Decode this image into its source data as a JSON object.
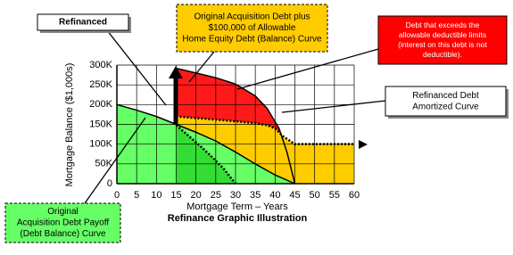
{
  "chart_data": {
    "type": "area",
    "title": "Refinance Graphic Illustration",
    "x_label": "Mortgage Term – Years",
    "y_label": "Mortgage Balance ($1,000s)",
    "xlim": [
      0,
      60
    ],
    "ylim": [
      0,
      300
    ],
    "xticks": [
      0,
      5,
      10,
      15,
      20,
      25,
      30,
      35,
      40,
      45,
      50,
      55,
      60
    ],
    "yticks": [
      {
        "value": 0,
        "label": "0"
      },
      {
        "value": 50,
        "label": "50K"
      },
      {
        "value": 100,
        "label": "100K"
      },
      {
        "value": 150,
        "label": "150K"
      },
      {
        "value": 200,
        "label": "200K"
      },
      {
        "value": 250,
        "label": "250K"
      },
      {
        "value": 300,
        "label": "300K"
      }
    ],
    "grid": true,
    "series": [
      {
        "color": "#ff1a1a",
        "line": "solid",
        "x": [
          15,
          20,
          25,
          30,
          35,
          38,
          41,
          43,
          45
        ],
        "values": [
          292,
          280,
          268,
          252,
          222,
          190,
          140,
          80,
          0
        ]
      },
      {
        "color": "#ffcc00",
        "line": "dotted",
        "x": [
          15,
          20,
          25,
          30,
          35,
          38,
          40,
          42,
          45,
          60
        ],
        "values": [
          170,
          166,
          162,
          158,
          153,
          148,
          140,
          120,
          100,
          100
        ]
      },
      {
        "color": "#66ff66",
        "line": "solid",
        "x": [
          0,
          5,
          10,
          15,
          20,
          25,
          30,
          35,
          40,
          45
        ],
        "values": [
          200,
          186,
          170,
          150,
          130,
          108,
          80,
          50,
          22,
          0
        ]
      },
      {
        "color": "#33dd33",
        "line": "dotted",
        "x": [
          15,
          18,
          21,
          24,
          27,
          30
        ],
        "values": [
          148,
          122,
          96,
          68,
          38,
          0
        ]
      }
    ],
    "annotations": [
      {
        "lines": [
          "Refinanced"
        ]
      },
      {
        "lines": [
          "Original Acquisition Debt plus",
          "$100,000 of Allowable",
          "Home Equity Debt (Balance) Curve"
        ]
      },
      {
        "lines": [
          "Debt that exceeds the",
          "allowable deductible limits",
          "(interest on this debt is not",
          "deductible)."
        ]
      },
      {
        "lines": [
          "Refinanced Debt",
          "Amortized Curve"
        ]
      },
      {
        "lines": [
          "Original",
          "Acquisition Debt Payoff",
          "(Debt Balance) Curve"
        ]
      }
    ]
  }
}
